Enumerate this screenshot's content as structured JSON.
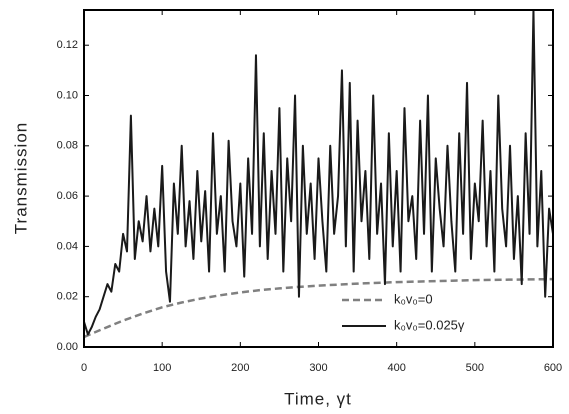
{
  "chart_data": {
    "type": "line",
    "xlabel": "Time, γt",
    "ylabel": "Transmission",
    "xlim": [
      0,
      600
    ],
    "xticks": [
      0,
      100,
      200,
      300,
      400,
      500,
      600
    ],
    "ylim": [
      0,
      0.134
    ],
    "yticks": [
      {
        "value": 0,
        "label": "0.00"
      },
      0.02,
      0.04,
      0.06,
      0.08,
      {
        "value": 0.1,
        "label": "0.10"
      },
      0.12
    ],
    "legend": "lower right",
    "series": [
      {
        "name": "k₀v₀=0",
        "color": "#808080",
        "style": "dashed",
        "x": [
          0,
          25,
          50,
          75,
          100,
          125,
          150,
          175,
          200,
          225,
          250,
          275,
          300,
          325,
          350,
          375,
          400,
          425,
          450,
          475,
          500,
          525,
          550,
          575,
          600
        ],
        "values": [
          0.004,
          0.0073,
          0.0105,
          0.0133,
          0.0158,
          0.0177,
          0.0193,
          0.0206,
          0.0217,
          0.0226,
          0.0233,
          0.0239,
          0.0244,
          0.0248,
          0.0252,
          0.0255,
          0.0258,
          0.026,
          0.0262,
          0.0264,
          0.0266,
          0.0267,
          0.0268,
          0.0269,
          0.027
        ]
      },
      {
        "name": "k₀v₀=0.025γ",
        "color": "#1a1a1a",
        "style": "solid",
        "x": [
          0,
          5,
          10,
          15,
          20,
          25,
          30,
          35,
          40,
          45,
          50,
          55,
          60,
          65,
          70,
          75,
          80,
          85,
          90,
          95,
          100,
          105,
          110,
          115,
          120,
          125,
          130,
          135,
          140,
          145,
          150,
          155,
          160,
          165,
          170,
          175,
          180,
          185,
          190,
          195,
          200,
          205,
          210,
          215,
          220,
          225,
          230,
          235,
          240,
          245,
          250,
          255,
          260,
          265,
          270,
          275,
          280,
          285,
          290,
          295,
          300,
          305,
          310,
          315,
          320,
          325,
          330,
          335,
          340,
          345,
          350,
          355,
          360,
          365,
          370,
          375,
          380,
          385,
          390,
          395,
          400,
          405,
          410,
          415,
          420,
          425,
          430,
          435,
          440,
          445,
          450,
          455,
          460,
          465,
          470,
          475,
          480,
          485,
          490,
          495,
          500,
          505,
          510,
          515,
          520,
          525,
          530,
          535,
          540,
          545,
          550,
          555,
          560,
          565,
          570,
          575,
          580,
          585,
          590,
          595,
          600
        ],
        "values": [
          0.01,
          0.005,
          0.008,
          0.012,
          0.015,
          0.02,
          0.025,
          0.022,
          0.033,
          0.03,
          0.045,
          0.038,
          0.092,
          0.035,
          0.05,
          0.042,
          0.06,
          0.038,
          0.055,
          0.04,
          0.072,
          0.03,
          0.018,
          0.065,
          0.045,
          0.08,
          0.04,
          0.058,
          0.035,
          0.07,
          0.042,
          0.062,
          0.03,
          0.085,
          0.045,
          0.06,
          0.03,
          0.082,
          0.05,
          0.04,
          0.065,
          0.028,
          0.075,
          0.045,
          0.116,
          0.04,
          0.085,
          0.035,
          0.07,
          0.045,
          0.095,
          0.03,
          0.075,
          0.05,
          0.1,
          0.02,
          0.08,
          0.045,
          0.065,
          0.035,
          0.075,
          0.05,
          0.03,
          0.08,
          0.045,
          0.06,
          0.11,
          0.04,
          0.105,
          0.03,
          0.09,
          0.05,
          0.07,
          0.035,
          0.1,
          0.045,
          0.065,
          0.025,
          0.085,
          0.04,
          0.07,
          0.03,
          0.095,
          0.05,
          0.06,
          0.035,
          0.09,
          0.045,
          0.1,
          0.03,
          0.075,
          0.055,
          0.04,
          0.08,
          0.05,
          0.03,
          0.085,
          0.045,
          0.105,
          0.035,
          0.065,
          0.05,
          0.09,
          0.04,
          0.07,
          0.03,
          0.1,
          0.055,
          0.04,
          0.08,
          0.035,
          0.06,
          0.025,
          0.085,
          0.045,
          0.134,
          0.04,
          0.07,
          0.02,
          0.055,
          0.045
        ]
      }
    ]
  }
}
